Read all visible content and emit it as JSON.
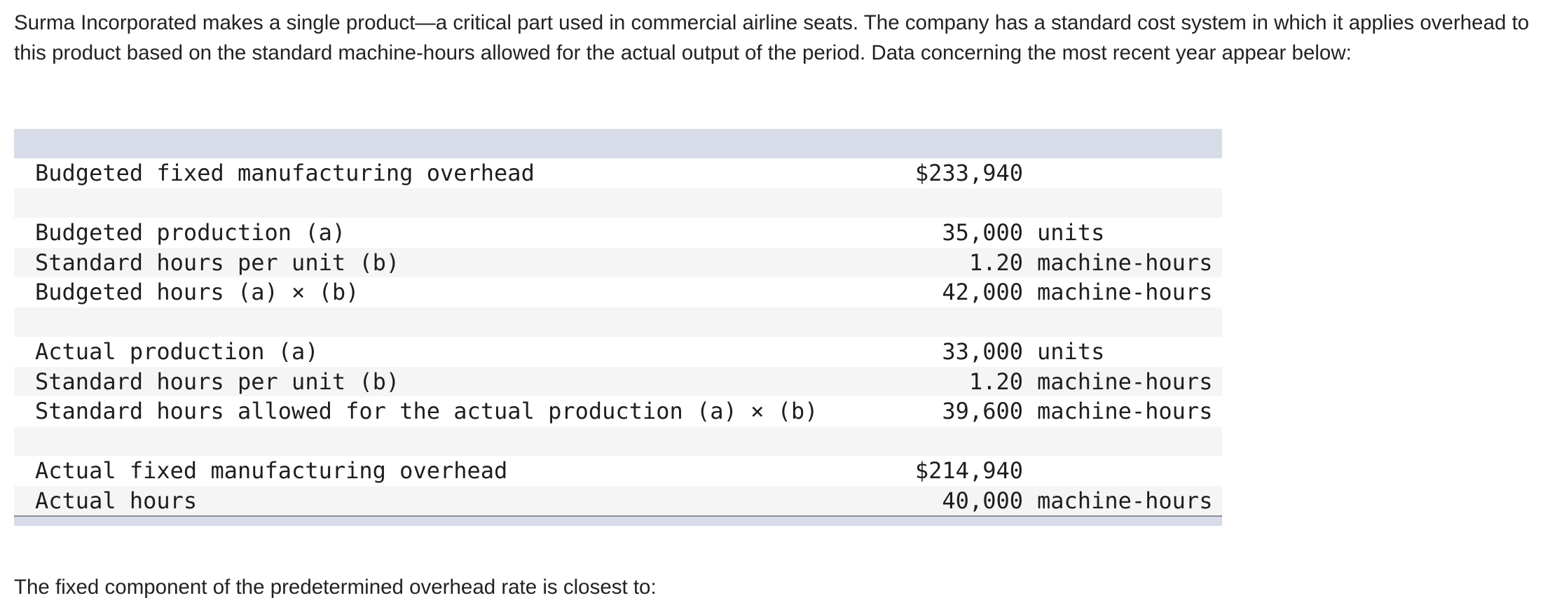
{
  "intro": "Surma Incorporated makes a single product—a critical part used in commercial airline seats. The company has a standard cost system in which it applies overhead to this product based on the standard machine-hours allowed for the actual output of the period. Data concerning the most recent year appear below:",
  "rows": [
    {
      "label": "Budgeted fixed manufacturing overhead",
      "amount": "$233,940",
      "unit": ""
    },
    {
      "label": "",
      "amount": "",
      "unit": ""
    },
    {
      "label": "Budgeted production (a)",
      "amount": "35,000",
      "unit": "units"
    },
    {
      "label": "Standard hours per unit (b)",
      "amount": "1.20",
      "unit": "machine-hours"
    },
    {
      "label": "Budgeted hours (a) × (b)",
      "amount": "42,000",
      "unit": "machine-hours"
    },
    {
      "label": "",
      "amount": "",
      "unit": ""
    },
    {
      "label": "Actual production (a)",
      "amount": "33,000",
      "unit": "units"
    },
    {
      "label": "Standard hours per unit (b)",
      "amount": "1.20",
      "unit": "machine-hours"
    },
    {
      "label": "Standard hours allowed for the actual production (a) × (b)",
      "amount": "39,600",
      "unit": "machine-hours"
    },
    {
      "label": "",
      "amount": "",
      "unit": ""
    },
    {
      "label": "Actual fixed manufacturing overhead",
      "amount": "$214,940",
      "unit": ""
    },
    {
      "label": "Actual hours",
      "amount": "40,000",
      "unit": "machine-hours"
    }
  ],
  "question": "The fixed component of the predetermined overhead rate is closest to:"
}
